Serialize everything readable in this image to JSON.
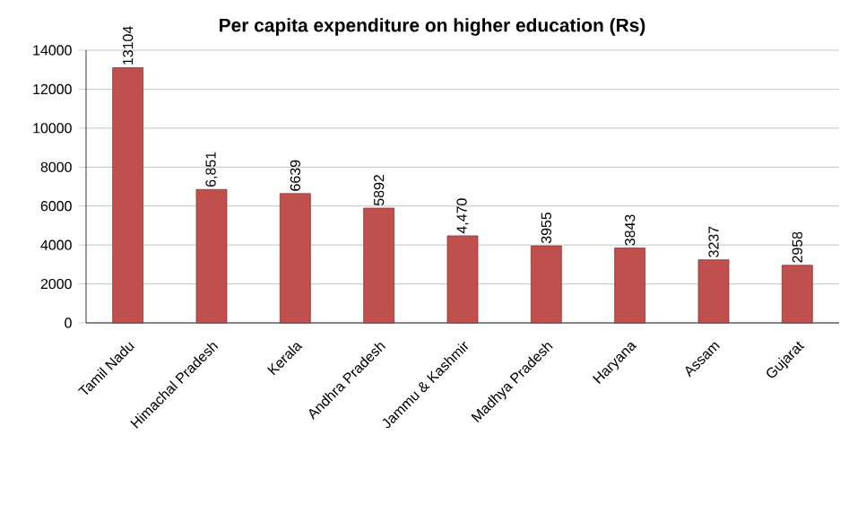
{
  "chart_data": {
    "type": "bar",
    "title": "Per capita expenditure on higher education (Rs)",
    "categories": [
      "Tamil Nadu",
      "Himachal Pradesh",
      "Kerala",
      "Andhra Pradesh",
      "Jammu & Kashmir",
      "Madhya Pradesh",
      "Haryana",
      "Assam",
      "Gujarat"
    ],
    "values": [
      13104,
      6851,
      6639,
      5892,
      4470,
      3955,
      3843,
      3237,
      2958
    ],
    "value_labels": [
      "13104",
      "6,851",
      "6639",
      "5892",
      "4,470",
      "3955",
      "3843",
      "3237",
      "2958"
    ],
    "color": "#c0504d",
    "ylim": [
      0,
      14000
    ],
    "yticks": [
      0,
      2000,
      4000,
      6000,
      8000,
      10000,
      12000,
      14000
    ],
    "grid": "y"
  }
}
